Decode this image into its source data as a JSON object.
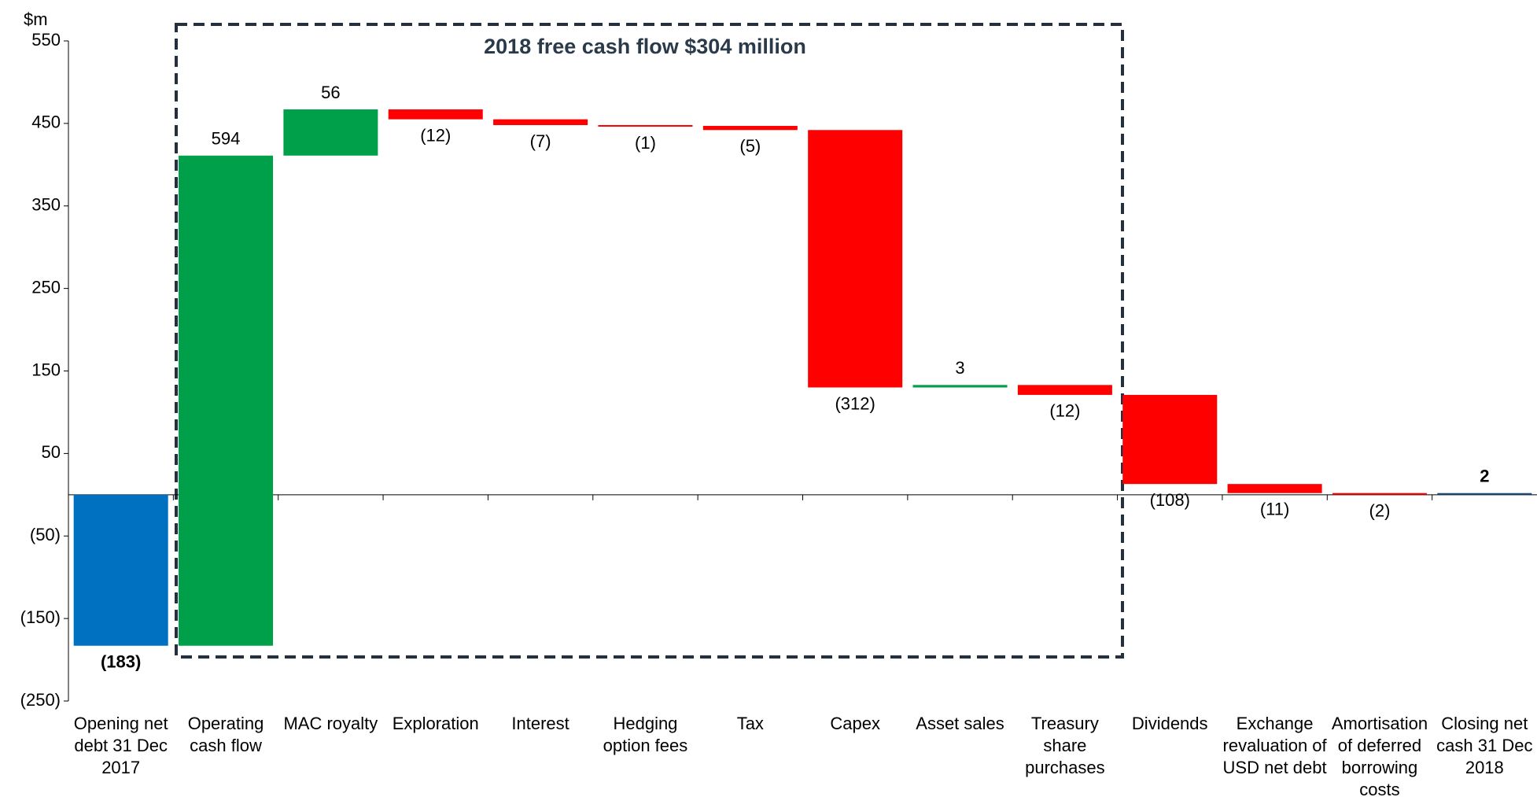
{
  "chart_data": {
    "type": "waterfall",
    "title": "2018 free cash flow $304 million",
    "y_unit_label": "$m",
    "categories": [
      "Opening net debt 31 Dec 2017",
      "Operating cash flow",
      "MAC royalty",
      "Exploration",
      "Interest",
      "Hedging option fees",
      "Tax",
      "Capex",
      "Asset sales",
      "Treasury share purchases",
      "Dividends",
      "Exchange revaluation of USD net debt",
      "Amortisation of deferred borrowing costs",
      "Closing net cash 31 Dec 2018"
    ],
    "values": [
      -183,
      594,
      56,
      -12,
      -7,
      -1,
      -5,
      -312,
      3,
      -12,
      -108,
      -11,
      -2,
      2
    ],
    "value_labels": [
      "(183)",
      "594",
      "56",
      "(12)",
      "(7)",
      "(1)",
      "(5)",
      "(312)",
      "3",
      "(12)",
      "(108)",
      "(11)",
      "(2)",
      "2"
    ],
    "colors": [
      "#0070c0",
      "#00a04a",
      "#00a04a",
      "#ff0000",
      "#ff0000",
      "#ff0000",
      "#ff0000",
      "#ff0000",
      "#00a04a",
      "#ff0000",
      "#ff0000",
      "#ff0000",
      "#ff0000",
      "#1f4e79"
    ],
    "ylim": [
      -250,
      550
    ],
    "yticks": [
      {
        "value": -250,
        "label": "(250)"
      },
      {
        "value": -150,
        "label": "(150)"
      },
      {
        "value": -50,
        "label": "(50)"
      },
      50,
      150,
      250,
      350,
      450,
      550
    ]
  }
}
